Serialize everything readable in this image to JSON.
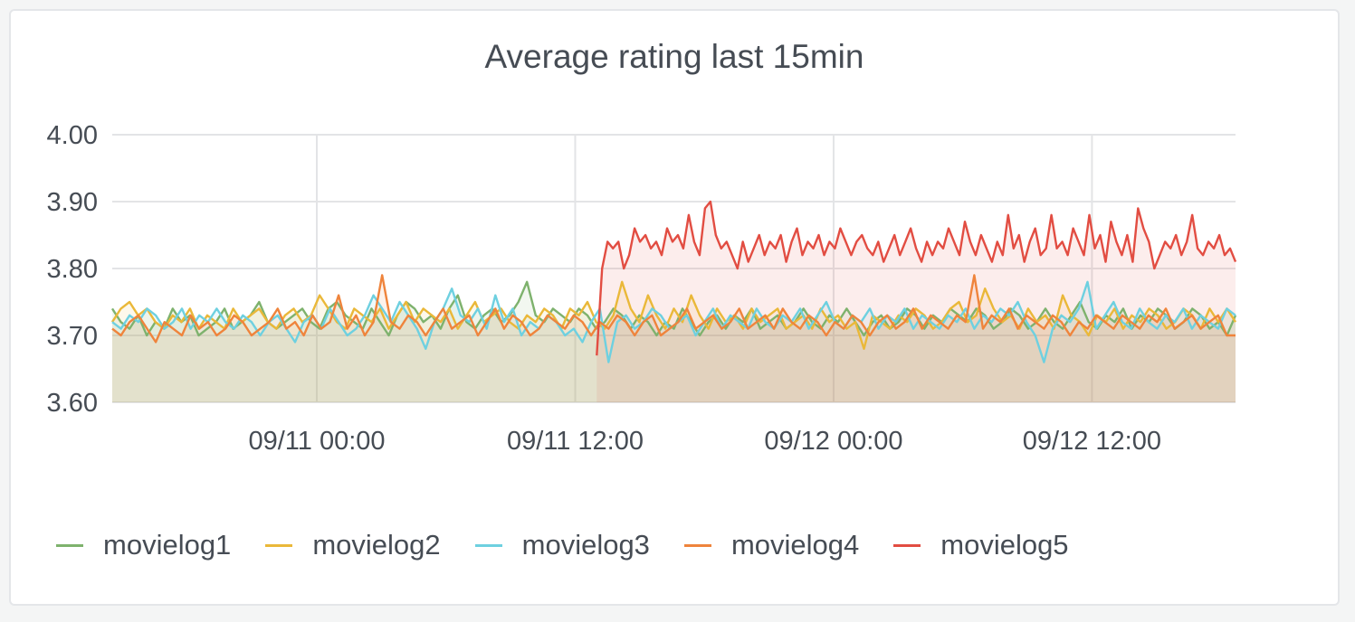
{
  "panel": {
    "title": "Average rating last 15min"
  },
  "colors": {
    "movielog1": "#7eb26d",
    "movielog2": "#eab839",
    "movielog3": "#6ed0e0",
    "movielog4": "#ef843c",
    "movielog5": "#e24d42"
  },
  "chart_data": {
    "type": "line",
    "title": "Average rating last 15min",
    "xlabel": "",
    "ylabel": "",
    "x_range": [
      "2019-09-10 14:30",
      "2019-09-12 18:40"
    ],
    "ylim": [
      3.6,
      4.0
    ],
    "y_ticks": [
      "3.60",
      "3.70",
      "3.80",
      "3.90",
      "4.00"
    ],
    "x_ticks": [
      {
        "label": "09/11 00:00",
        "x": "2019-09-11 00:00"
      },
      {
        "label": "09/11 12:00",
        "x": "2019-09-11 12:00"
      },
      {
        "label": "09/12 00:00",
        "x": "2019-09-12 00:00"
      },
      {
        "label": "09/12 12:00",
        "x": "2019-09-12 12:00"
      }
    ],
    "grid": true,
    "legend_position": "bottom-left",
    "fill_area": true,
    "series": [
      {
        "name": "movielog1",
        "x_start": "2019-09-10 14:30",
        "x_end": "2019-09-12 18:40",
        "values": [
          3.74,
          3.72,
          3.71,
          3.73,
          3.7,
          3.72,
          3.71,
          3.74,
          3.72,
          3.73,
          3.7,
          3.71,
          3.72,
          3.74,
          3.71,
          3.72,
          3.73,
          3.75,
          3.72,
          3.71,
          3.72,
          3.73,
          3.74,
          3.72,
          3.71,
          3.74,
          3.75,
          3.73,
          3.72,
          3.71,
          3.74,
          3.72,
          3.7,
          3.73,
          3.75,
          3.74,
          3.72,
          3.73,
          3.71,
          3.74,
          3.76,
          3.72,
          3.71,
          3.73,
          3.74,
          3.72,
          3.73,
          3.75,
          3.78,
          3.73,
          3.72,
          3.74,
          3.73,
          3.72,
          3.74,
          3.73,
          3.71,
          3.72,
          3.74,
          3.73,
          3.71,
          3.73,
          3.72,
          3.7,
          3.72,
          3.71,
          3.74,
          3.72,
          3.7,
          3.72,
          3.73,
          3.71,
          3.73,
          3.72,
          3.74,
          3.71,
          3.72,
          3.73,
          3.71,
          3.72,
          3.74,
          3.72,
          3.71,
          3.73,
          3.72,
          3.74,
          3.72,
          3.7,
          3.72,
          3.73,
          3.71,
          3.72,
          3.74,
          3.73,
          3.71,
          3.73,
          3.72,
          3.74,
          3.73,
          3.72,
          3.74,
          3.73,
          3.71,
          3.72,
          3.74,
          3.73,
          3.71,
          3.72,
          3.74,
          3.72,
          3.71,
          3.73,
          3.75,
          3.72,
          3.71,
          3.73,
          3.72,
          3.74,
          3.71,
          3.73,
          3.72,
          3.74,
          3.73,
          3.71,
          3.72,
          3.74,
          3.73,
          3.71,
          3.72,
          3.7,
          3.73
        ]
      },
      {
        "name": "movielog2",
        "x_start": "2019-09-10 14:30",
        "x_end": "2019-09-12 18:40",
        "values": [
          3.72,
          3.74,
          3.75,
          3.73,
          3.74,
          3.72,
          3.71,
          3.73,
          3.72,
          3.74,
          3.71,
          3.73,
          3.72,
          3.71,
          3.74,
          3.72,
          3.73,
          3.74,
          3.72,
          3.71,
          3.73,
          3.74,
          3.72,
          3.73,
          3.76,
          3.74,
          3.72,
          3.71,
          3.74,
          3.73,
          3.72,
          3.74,
          3.71,
          3.73,
          3.75,
          3.72,
          3.74,
          3.73,
          3.72,
          3.74,
          3.71,
          3.73,
          3.75,
          3.72,
          3.73,
          3.74,
          3.72,
          3.71,
          3.73,
          3.72,
          3.74,
          3.73,
          3.71,
          3.74,
          3.73,
          3.75,
          3.72,
          3.71,
          3.73,
          3.78,
          3.74,
          3.72,
          3.76,
          3.73,
          3.71,
          3.74,
          3.72,
          3.76,
          3.73,
          3.71,
          3.74,
          3.72,
          3.73,
          3.71,
          3.74,
          3.72,
          3.73,
          3.74,
          3.71,
          3.72,
          3.73,
          3.71,
          3.74,
          3.72,
          3.73,
          3.71,
          3.72,
          3.68,
          3.73,
          3.72,
          3.71,
          3.73,
          3.72,
          3.74,
          3.73,
          3.71,
          3.72,
          3.74,
          3.75,
          3.72,
          3.73,
          3.77,
          3.74,
          3.72,
          3.73,
          3.71,
          3.74,
          3.72,
          3.73,
          3.71,
          3.76,
          3.73,
          3.72,
          3.7,
          3.73,
          3.72,
          3.74,
          3.71,
          3.73,
          3.72,
          3.74,
          3.73,
          3.71,
          3.72,
          3.74,
          3.73,
          3.71,
          3.74,
          3.72,
          3.74,
          3.72
        ]
      },
      {
        "name": "movielog3",
        "x_start": "2019-09-10 14:30",
        "x_end": "2019-09-12 18:40",
        "values": [
          3.72,
          3.71,
          3.73,
          3.72,
          3.74,
          3.73,
          3.71,
          3.72,
          3.74,
          3.71,
          3.73,
          3.72,
          3.74,
          3.72,
          3.71,
          3.73,
          3.72,
          3.7,
          3.72,
          3.73,
          3.71,
          3.69,
          3.72,
          3.73,
          3.71,
          3.74,
          3.72,
          3.7,
          3.71,
          3.73,
          3.76,
          3.74,
          3.72,
          3.75,
          3.73,
          3.71,
          3.68,
          3.72,
          3.74,
          3.77,
          3.73,
          3.72,
          3.74,
          3.71,
          3.76,
          3.72,
          3.74,
          3.7,
          3.72,
          3.71,
          3.73,
          3.72,
          3.7,
          3.71,
          3.69,
          3.72,
          3.74,
          3.66,
          3.72,
          3.73,
          3.71,
          3.72,
          3.74,
          3.73,
          3.71,
          3.72,
          3.73,
          3.7,
          3.72,
          3.74,
          3.71,
          3.73,
          3.72,
          3.71,
          3.74,
          3.72,
          3.71,
          3.73,
          3.72,
          3.74,
          3.71,
          3.73,
          3.75,
          3.72,
          3.71,
          3.73,
          3.72,
          3.74,
          3.71,
          3.73,
          3.72,
          3.74,
          3.71,
          3.73,
          3.72,
          3.71,
          3.73,
          3.72,
          3.74,
          3.71,
          3.73,
          3.72,
          3.74,
          3.73,
          3.75,
          3.72,
          3.7,
          3.66,
          3.71,
          3.73,
          3.72,
          3.74,
          3.78,
          3.71,
          3.73,
          3.75,
          3.72,
          3.71,
          3.74,
          3.72,
          3.71,
          3.73,
          3.72,
          3.74,
          3.71,
          3.73,
          3.72,
          3.71,
          3.74,
          3.73
        ]
      },
      {
        "name": "movielog4",
        "x_start": "2019-09-10 14:30",
        "x_end": "2019-09-12 18:40",
        "values": [
          3.71,
          3.7,
          3.72,
          3.73,
          3.71,
          3.69,
          3.72,
          3.71,
          3.7,
          3.73,
          3.71,
          3.72,
          3.7,
          3.71,
          3.73,
          3.72,
          3.7,
          3.71,
          3.72,
          3.74,
          3.71,
          3.72,
          3.7,
          3.73,
          3.71,
          3.72,
          3.76,
          3.71,
          3.73,
          3.7,
          3.72,
          3.79,
          3.72,
          3.71,
          3.73,
          3.72,
          3.7,
          3.72,
          3.74,
          3.71,
          3.72,
          3.73,
          3.7,
          3.72,
          3.74,
          3.71,
          3.73,
          3.72,
          3.7,
          3.71,
          3.73,
          3.72,
          3.71,
          3.73,
          3.72,
          3.7,
          3.72,
          3.71,
          3.73,
          3.72,
          3.7,
          3.72,
          3.73,
          3.7,
          3.71,
          3.72,
          3.74,
          3.71,
          3.72,
          3.73,
          3.71,
          3.72,
          3.74,
          3.71,
          3.72,
          3.73,
          3.71,
          3.74,
          3.72,
          3.71,
          3.73,
          3.72,
          3.7,
          3.72,
          3.71,
          3.73,
          3.72,
          3.7,
          3.72,
          3.73,
          3.71,
          3.72,
          3.74,
          3.71,
          3.73,
          3.72,
          3.71,
          3.73,
          3.72,
          3.79,
          3.71,
          3.73,
          3.72,
          3.74,
          3.71,
          3.73,
          3.72,
          3.71,
          3.73,
          3.72,
          3.7,
          3.72,
          3.71,
          3.73,
          3.72,
          3.71,
          3.73,
          3.72,
          3.71,
          3.73,
          3.72,
          3.74,
          3.71,
          3.72,
          3.73,
          3.71,
          3.72,
          3.73,
          3.7,
          3.7
        ]
      },
      {
        "name": "movielog5",
        "x_start": "2019-09-11 13:00",
        "x_end": "2019-09-12 18:40",
        "values": [
          3.67,
          3.8,
          3.84,
          3.83,
          3.84,
          3.8,
          3.82,
          3.86,
          3.84,
          3.85,
          3.83,
          3.84,
          3.82,
          3.86,
          3.84,
          3.85,
          3.83,
          3.88,
          3.84,
          3.82,
          3.89,
          3.9,
          3.85,
          3.83,
          3.84,
          3.82,
          3.8,
          3.84,
          3.81,
          3.83,
          3.85,
          3.82,
          3.84,
          3.83,
          3.85,
          3.81,
          3.84,
          3.86,
          3.82,
          3.84,
          3.83,
          3.85,
          3.82,
          3.84,
          3.83,
          3.86,
          3.84,
          3.82,
          3.84,
          3.85,
          3.83,
          3.82,
          3.84,
          3.81,
          3.83,
          3.85,
          3.82,
          3.84,
          3.86,
          3.83,
          3.81,
          3.84,
          3.82,
          3.84,
          3.83,
          3.86,
          3.84,
          3.82,
          3.87,
          3.84,
          3.82,
          3.85,
          3.83,
          3.81,
          3.84,
          3.82,
          3.88,
          3.83,
          3.85,
          3.81,
          3.84,
          3.86,
          3.82,
          3.83,
          3.88,
          3.83,
          3.84,
          3.82,
          3.86,
          3.84,
          3.82,
          3.88,
          3.83,
          3.85,
          3.81,
          3.87,
          3.84,
          3.82,
          3.85,
          3.81,
          3.89,
          3.86,
          3.84,
          3.8,
          3.82,
          3.84,
          3.83,
          3.85,
          3.82,
          3.84,
          3.88,
          3.83,
          3.82,
          3.84,
          3.83,
          3.85,
          3.82,
          3.83,
          3.81
        ]
      }
    ]
  }
}
